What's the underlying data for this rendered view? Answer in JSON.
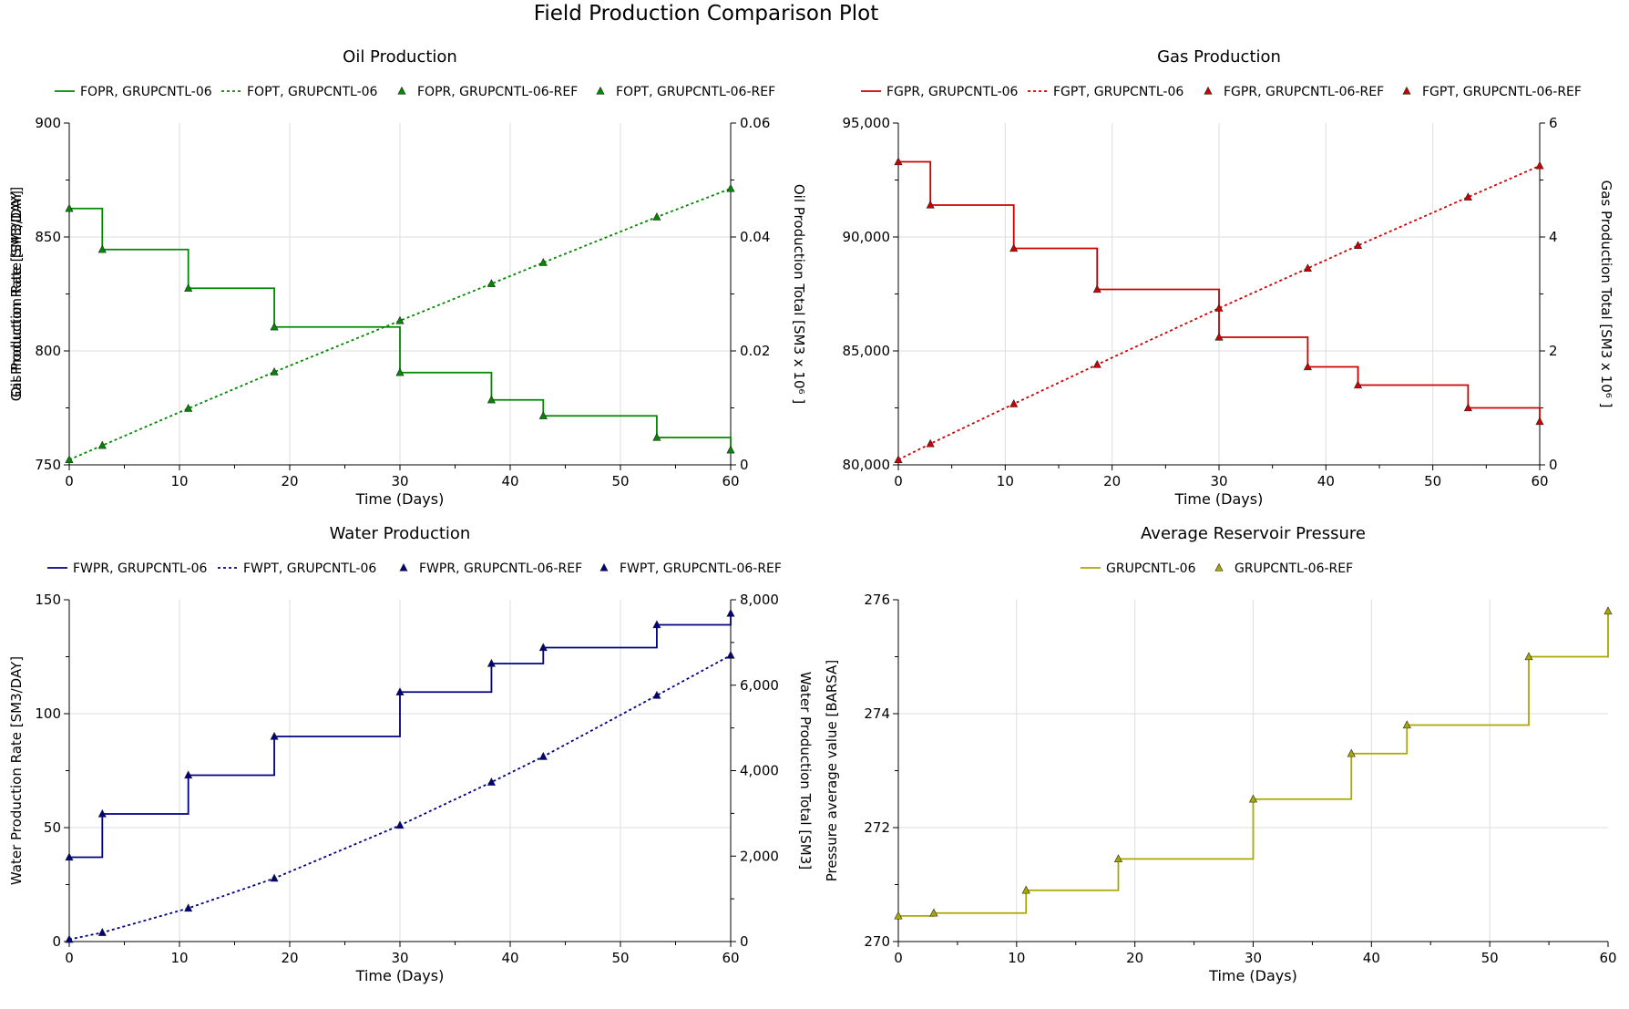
{
  "page_title": "Field Production Comparison Plot",
  "chart_data": [
    {
      "type": "line",
      "title": "Oil Production",
      "xlabel": "Time (Days)",
      "ylabel": "Oil Production Rate [SM3/DAY]",
      "y2label": "Oil Production Total [SM3 x 10⁶ ]",
      "xlim": [
        0,
        60
      ],
      "ylim": [
        750,
        900
      ],
      "y2lim": [
        0,
        0.06
      ],
      "xticks": [
        "0",
        "10",
        "20",
        "30",
        "40",
        "50",
        "60"
      ],
      "yticks": [
        "750",
        "800",
        "850",
        "900"
      ],
      "y2ticks": [
        "0",
        "0.02",
        "0.04",
        "0.06"
      ],
      "grid": true,
      "legend": "top",
      "color": "#008800",
      "legend_entries": [
        "FOPR, GRUPCNTL-06",
        "FOPT, GRUPCNTL-06",
        "FOPR, GRUPCNTL-06-REF",
        "FOPT, GRUPCNTL-06-REF"
      ],
      "series": [
        {
          "name": "FOPR, GRUPCNTL-06",
          "axis": "left",
          "style": "step",
          "x": [
            0,
            3,
            10.8,
            18.6,
            30,
            38.3,
            43,
            53.3,
            60
          ],
          "y": [
            862.5,
            844.5,
            827.5,
            810.5,
            790.5,
            778.5,
            771.5,
            762,
            756.5
          ]
        },
        {
          "name": "FOPT, GRUPCNTL-06",
          "axis": "right",
          "style": "dotted",
          "x": [
            0,
            3,
            10.8,
            18.6,
            30,
            38.3,
            43,
            53.3,
            60
          ],
          "y": [
            0.0009,
            0.0034,
            0.0099,
            0.0163,
            0.0253,
            0.0318,
            0.0355,
            0.0435,
            0.0485
          ]
        },
        {
          "name": "FOPR, GRUPCNTL-06-REF",
          "axis": "left",
          "style": "markers",
          "x": [
            0,
            3,
            10.8,
            18.6,
            30,
            38.3,
            43,
            53.3,
            60
          ],
          "y": [
            862.5,
            844.5,
            827.5,
            810.5,
            790.5,
            778.5,
            771.5,
            762,
            756.5
          ]
        },
        {
          "name": "FOPT, GRUPCNTL-06-REF",
          "axis": "right",
          "style": "markers",
          "x": [
            0,
            3,
            10.8,
            18.6,
            30,
            38.3,
            43,
            53.3,
            60
          ],
          "y": [
            0.0009,
            0.0034,
            0.0099,
            0.0163,
            0.0253,
            0.0318,
            0.0355,
            0.0435,
            0.0485
          ]
        }
      ]
    },
    {
      "type": "line",
      "title": "Gas Production",
      "xlabel": "Time (Days)",
      "ylabel": "Gas Production Rate [SM3/DAY]",
      "y2label": "Gas Production Total [SM3 x 10⁶ ]",
      "xlim": [
        0,
        60
      ],
      "ylim": [
        80000,
        95000
      ],
      "y2lim": [
        0,
        6
      ],
      "xticks": [
        "0",
        "10",
        "20",
        "30",
        "40",
        "50",
        "60"
      ],
      "yticks": [
        "80,000",
        "85,000",
        "90,000",
        "95,000"
      ],
      "y2ticks": [
        "0",
        "2",
        "4",
        "6"
      ],
      "grid": true,
      "legend": "top",
      "color": "#cc0000",
      "legend_entries": [
        "FGPR, GRUPCNTL-06",
        "FGPT, GRUPCNTL-06",
        "FGPR, GRUPCNTL-06-REF",
        "FGPT, GRUPCNTL-06-REF"
      ],
      "series": [
        {
          "name": "FGPR, GRUPCNTL-06",
          "axis": "left",
          "style": "step",
          "x": [
            0,
            3,
            10.8,
            18.6,
            30,
            38.3,
            43,
            53.3,
            60
          ],
          "y": [
            93300,
            91400,
            89500,
            87700,
            85600,
            84300,
            83500,
            82500,
            81900
          ]
        },
        {
          "name": "FGPT, GRUPCNTL-06",
          "axis": "right",
          "style": "dotted",
          "x": [
            0,
            3,
            10.8,
            18.6,
            30,
            38.3,
            43,
            53.3,
            60
          ],
          "y": [
            0.09,
            0.37,
            1.07,
            1.76,
            2.75,
            3.45,
            3.85,
            4.7,
            5.25
          ]
        },
        {
          "name": "FGPR, GRUPCNTL-06-REF",
          "axis": "left",
          "style": "markers",
          "x": [
            0,
            3,
            10.8,
            18.6,
            30,
            38.3,
            43,
            53.3,
            60
          ],
          "y": [
            93300,
            91400,
            89500,
            87700,
            85600,
            84300,
            83500,
            82500,
            81900
          ]
        },
        {
          "name": "FGPT, GRUPCNTL-06-REF",
          "axis": "right",
          "style": "markers",
          "x": [
            0,
            3,
            10.8,
            18.6,
            30,
            38.3,
            43,
            53.3,
            60
          ],
          "y": [
            0.09,
            0.37,
            1.07,
            1.76,
            2.75,
            3.45,
            3.85,
            4.7,
            5.25
          ]
        }
      ]
    },
    {
      "type": "line",
      "title": "Water Production",
      "xlabel": "Time (Days)",
      "ylabel": "Water Production Rate [SM3/DAY]",
      "y2label": "Water Production Total [SM3]",
      "xlim": [
        0,
        60
      ],
      "ylim": [
        0,
        150
      ],
      "y2lim": [
        0,
        8000
      ],
      "xticks": [
        "0",
        "10",
        "20",
        "30",
        "40",
        "50",
        "60"
      ],
      "yticks": [
        "0",
        "50",
        "100",
        "150"
      ],
      "y2ticks": [
        "0",
        "2,000",
        "4,000",
        "6,000",
        "8,000"
      ],
      "grid": true,
      "legend": "top",
      "color": "#000080",
      "legend_entries": [
        "FWPR, GRUPCNTL-06",
        "FWPT, GRUPCNTL-06",
        "FWPR, GRUPCNTL-06-REF",
        "FWPT, GRUPCNTL-06-REF"
      ],
      "series": [
        {
          "name": "FWPR, GRUPCNTL-06",
          "axis": "left",
          "style": "step",
          "x": [
            0,
            3,
            10.8,
            18.6,
            30,
            38.3,
            43,
            53.3,
            60
          ],
          "y": [
            37,
            56,
            73,
            90,
            109.5,
            122,
            129,
            139,
            144
          ]
        },
        {
          "name": "FWPT, GRUPCNTL-06",
          "axis": "right",
          "style": "dotted",
          "x": [
            0,
            3,
            10.8,
            18.6,
            30,
            38.3,
            43,
            53.3,
            60
          ],
          "y": [
            50,
            210,
            780,
            1480,
            2720,
            3730,
            4330,
            5760,
            6700
          ]
        },
        {
          "name": "FWPR, GRUPCNTL-06-REF",
          "axis": "left",
          "style": "markers",
          "x": [
            0,
            3,
            10.8,
            18.6,
            30,
            38.3,
            43,
            53.3,
            60
          ],
          "y": [
            37,
            56,
            73,
            90,
            109.5,
            122,
            129,
            139,
            144
          ]
        },
        {
          "name": "FWPT, GRUPCNTL-06-REF",
          "axis": "right",
          "style": "markers",
          "x": [
            0,
            3,
            10.8,
            18.6,
            30,
            38.3,
            43,
            53.3,
            60
          ],
          "y": [
            50,
            210,
            780,
            1480,
            2720,
            3730,
            4330,
            5760,
            6700
          ]
        }
      ]
    },
    {
      "type": "line",
      "title": "Average Reservoir Pressure",
      "xlabel": "Time (Days)",
      "ylabel": "Pressure average value [BARSA]",
      "y2label": "",
      "xlim": [
        0,
        60
      ],
      "ylim": [
        270,
        276
      ],
      "y2lim": null,
      "xticks": [
        "0",
        "10",
        "20",
        "30",
        "40",
        "50",
        "60"
      ],
      "yticks": [
        "270",
        "272",
        "274",
        "276"
      ],
      "y2ticks": [],
      "grid": true,
      "legend": "top",
      "color": "#a8a800",
      "legend_entries": [
        "GRUPCNTL-06",
        "GRUPCNTL-06-REF"
      ],
      "series": [
        {
          "name": "GRUPCNTL-06",
          "axis": "left",
          "style": "step",
          "x": [
            0,
            3,
            10.8,
            18.6,
            30,
            38.3,
            43,
            53.3,
            60
          ],
          "y": [
            270.45,
            270.5,
            270.9,
            271.45,
            272.5,
            273.3,
            273.8,
            275,
            275.8
          ]
        },
        {
          "name": "GRUPCNTL-06-REF",
          "axis": "left",
          "style": "markers",
          "x": [
            0,
            3,
            10.8,
            18.6,
            30,
            38.3,
            43,
            53.3,
            60
          ],
          "y": [
            270.45,
            270.5,
            270.9,
            271.45,
            272.5,
            273.3,
            273.8,
            275,
            275.8
          ]
        }
      ]
    }
  ]
}
